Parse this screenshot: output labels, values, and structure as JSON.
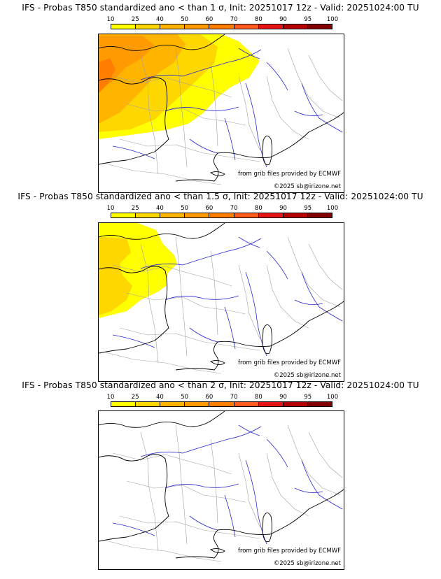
{
  "panels": [
    {
      "title": "IFS - Probas T850  standardized ano < than 1 σ, Init: 20251017 12z - Valid: 20251024:00 TU",
      "level": "1",
      "source": "from grib files provided by ECMWF",
      "copyright": "©2025 sb@irizone.net"
    },
    {
      "title": "IFS - Probas T850  standardized ano < than 1.5 σ, Init: 20251017 12z - Valid: 20251024:00 TU",
      "level": "1.5",
      "source": "from grib files provided by ECMWF",
      "copyright": "©2025 sb@irizone.net"
    },
    {
      "title": "IFS - Probas T850  standardized ano < than 2 σ, Init: 20251017 12z - Valid: 20251024:00 TU",
      "level": "2",
      "source": "from grib files provided by ECMWF",
      "copyright": "©2025 sb@irizone.net"
    }
  ],
  "colorbar": {
    "ticks": [
      "10",
      "25",
      "40",
      "50",
      "60",
      "70",
      "80",
      "90",
      "95",
      "100"
    ],
    "colors": [
      "#ffff00",
      "#ffd700",
      "#ffb400",
      "#ff9b00",
      "#ff7d00",
      "#ff5a1e",
      "#e61414",
      "#b40000",
      "#820000"
    ]
  },
  "colors": {
    "coast": "#000000",
    "rivers": "#2828d2",
    "borders": "#a0a0a0"
  }
}
